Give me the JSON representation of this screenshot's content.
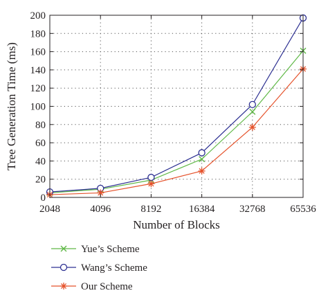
{
  "chart_data": {
    "type": "line",
    "xlabel": "Number of Blocks",
    "ylabel": "Tree Generation Time (ms)",
    "categories": [
      "2048",
      "4096",
      "8192",
      "16384",
      "32768",
      "65536"
    ],
    "ylim": [
      0,
      200
    ],
    "yticks": [
      "0",
      "20",
      "40",
      "60",
      "80",
      "100",
      "120",
      "140",
      "160",
      "180",
      "200"
    ],
    "grid": true,
    "legend_position": "below",
    "series": [
      {
        "name": "Yue’s Scheme",
        "marker": "x",
        "color": "#5fb846",
        "values": [
          5,
          9,
          19,
          42,
          94,
          161
        ]
      },
      {
        "name": "Wang’s Scheme",
        "marker": "o",
        "color": "#2e3192",
        "values": [
          6,
          10,
          22,
          49,
          102,
          197
        ]
      },
      {
        "name": "Our Scheme",
        "marker": "*",
        "color": "#e5522b",
        "values": [
          3,
          5,
          15,
          29,
          77,
          141
        ]
      }
    ]
  }
}
